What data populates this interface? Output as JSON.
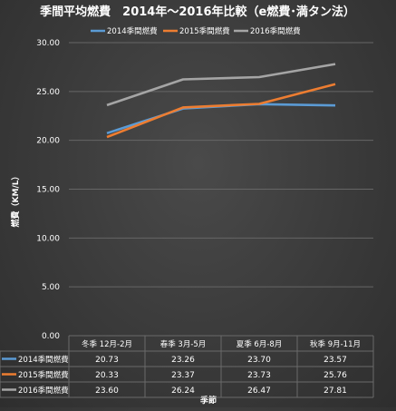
{
  "chart_data": {
    "type": "line",
    "title": "季間平均燃費　2014年～2016年比較（e燃費･満タン法）",
    "xlabel": "季節",
    "ylabel": "燃費（KM/L）",
    "ylim": [
      0,
      30
    ],
    "yticks": [
      "0.00",
      "5.00",
      "10.00",
      "15.00",
      "20.00",
      "25.00",
      "30.00"
    ],
    "grid": true,
    "legend_position": "top",
    "categories": [
      "冬季 12月-2月",
      "春季 3月-5月",
      "夏季 6月-8月",
      "秋季 9月-11月"
    ],
    "series": [
      {
        "name": "2014季間燃費",
        "color": "#5b9bd5",
        "values": [
          20.73,
          23.26,
          23.7,
          23.57
        ],
        "labels": [
          "20.73",
          "23.26",
          "23.70",
          "23.57"
        ]
      },
      {
        "name": "2015季間燃費",
        "color": "#ed7d31",
        "values": [
          20.33,
          23.37,
          23.73,
          25.76
        ],
        "labels": [
          "20.33",
          "23.37",
          "23.73",
          "25.76"
        ]
      },
      {
        "name": "2016季間燃費",
        "color": "#a5a5a5",
        "values": [
          23.6,
          26.24,
          26.47,
          27.81
        ],
        "labels": [
          "23.60",
          "26.24",
          "26.47",
          "27.81"
        ]
      }
    ]
  }
}
